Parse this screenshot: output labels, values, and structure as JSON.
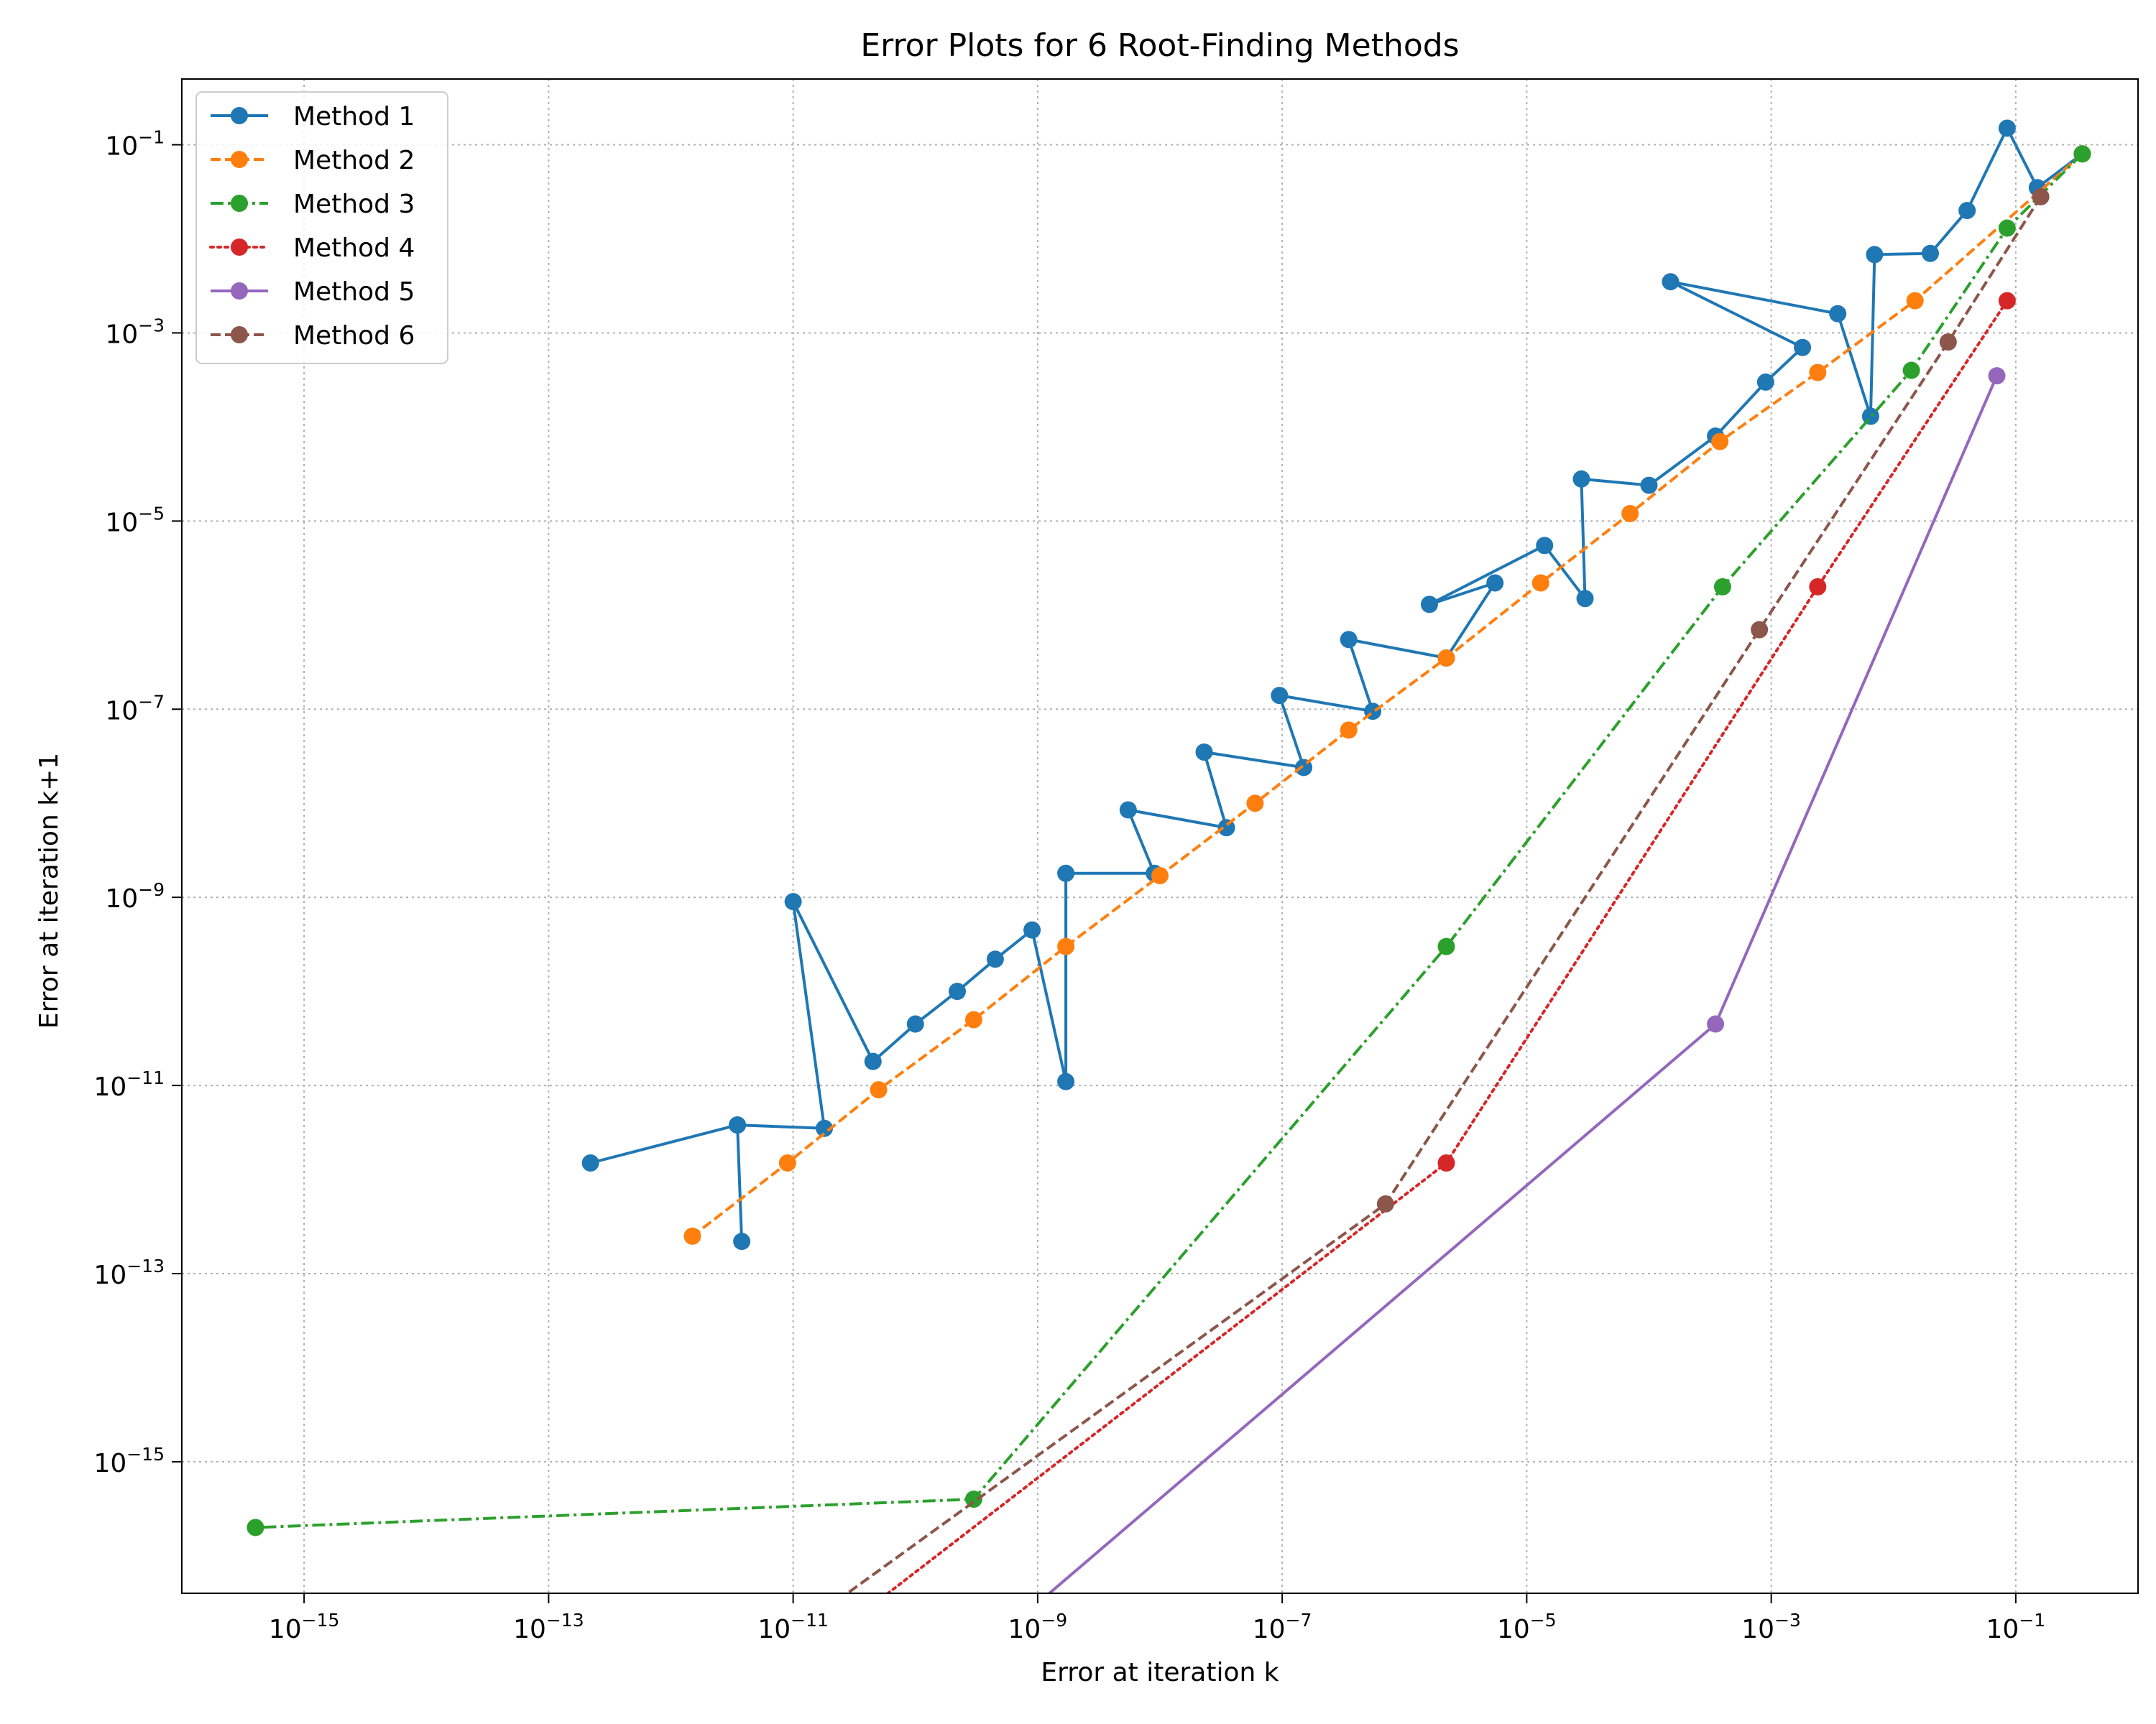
{
  "chart_data": {
    "type": "line",
    "title": "Error Plots for 6 Root-Finding Methods",
    "xlabel": "Error at iteration k",
    "ylabel": "Error at iteration k+1",
    "xscale": "log",
    "yscale": "log",
    "xlim": [
      1e-16,
      1.0
    ],
    "ylim": [
      4e-17,
      0.5
    ],
    "xticks": [
      {
        "value": 1e-15,
        "base": "10",
        "exp": "−15"
      },
      {
        "value": 1e-13,
        "base": "10",
        "exp": "−13"
      },
      {
        "value": 1e-11,
        "base": "10",
        "exp": "−11"
      },
      {
        "value": 1e-09,
        "base": "10",
        "exp": "−9"
      },
      {
        "value": 1e-07,
        "base": "10",
        "exp": "−7"
      },
      {
        "value": 1e-05,
        "base": "10",
        "exp": "−5"
      },
      {
        "value": 0.001,
        "base": "10",
        "exp": "−3"
      },
      {
        "value": 0.1,
        "base": "10",
        "exp": "−1"
      }
    ],
    "yticks": [
      {
        "value": 1e-15,
        "base": "10",
        "exp": "−15"
      },
      {
        "value": 1e-13,
        "base": "10",
        "exp": "−13"
      },
      {
        "value": 1e-11,
        "base": "10",
        "exp": "−11"
      },
      {
        "value": 1e-09,
        "base": "10",
        "exp": "−9"
      },
      {
        "value": 1e-07,
        "base": "10",
        "exp": "−7"
      },
      {
        "value": 1e-05,
        "base": "10",
        "exp": "−5"
      },
      {
        "value": 0.001,
        "base": "10",
        "exp": "−3"
      },
      {
        "value": 0.1,
        "base": "10",
        "exp": "−1"
      }
    ],
    "grid": true,
    "legend_position": "top-left",
    "series": [
      {
        "name": "Method 1",
        "color": "#1f77b4",
        "linestyle": "solid",
        "points": [
          [
            0.35,
            0.08
          ],
          [
            0.15,
            0.035
          ],
          [
            0.085,
            0.15
          ],
          [
            0.04,
            0.02
          ],
          [
            0.02,
            0.007
          ],
          [
            0.007,
            0.0068
          ],
          [
            0.0065,
            0.00013
          ],
          [
            0.0035,
            0.0016
          ],
          [
            0.00015,
            0.0035
          ],
          [
            0.0018,
            0.0007
          ],
          [
            0.0009,
            0.0003
          ],
          [
            0.00035,
            8e-05
          ],
          [
            0.0001,
            2.4e-05
          ],
          [
            2.8e-05,
            2.8e-05
          ],
          [
            3e-05,
            1.5e-06
          ],
          [
            1.4e-05,
            5.5e-06
          ],
          [
            1.6e-06,
            1.3e-06
          ],
          [
            5.5e-06,
            2.2e-06
          ],
          [
            2.2e-06,
            3.5e-07
          ],
          [
            3.5e-07,
            5.5e-07
          ],
          [
            5.5e-07,
            9.5e-08
          ],
          [
            9.5e-08,
            1.4e-07
          ],
          [
            1.5e-07,
            2.4e-08
          ],
          [
            2.3e-08,
            3.5e-08
          ],
          [
            3.5e-08,
            5.5e-09
          ],
          [
            5.5e-09,
            8.5e-09
          ],
          [
            9e-09,
            1.8e-09
          ],
          [
            1.7e-09,
            1.8e-09
          ],
          [
            1.7e-09,
            1.1e-11
          ],
          [
            9e-10,
            4.5e-10
          ],
          [
            4.5e-10,
            2.2e-10
          ],
          [
            2.2e-10,
            1e-10
          ],
          [
            1e-10,
            4.5e-11
          ],
          [
            4.5e-11,
            1.8e-11
          ],
          [
            1e-11,
            9e-10
          ],
          [
            1.8e-11,
            3.5e-12
          ],
          [
            3.5e-12,
            3.8e-12
          ],
          [
            3.8e-12,
            2.2e-13
          ],
          [
            3.5e-12,
            3.8e-12
          ],
          [
            2.2e-13,
            1.5e-12
          ]
        ]
      },
      {
        "name": "Method 2",
        "color": "#ff7f0e",
        "linestyle": "dashed",
        "points": [
          [
            0.35,
            0.08
          ],
          [
            0.015,
            0.0022
          ],
          [
            0.0024,
            0.00038
          ],
          [
            0.00038,
            7e-05
          ],
          [
            7e-05,
            1.2e-05
          ],
          [
            1.3e-05,
            2.2e-06
          ],
          [
            2.2e-06,
            3.5e-07
          ],
          [
            3.5e-07,
            6e-08
          ],
          [
            6e-08,
            1e-08
          ],
          [
            1e-08,
            1.7e-09
          ],
          [
            1.7e-09,
            3e-10
          ],
          [
            3e-10,
            5e-11
          ],
          [
            5e-11,
            9e-12
          ],
          [
            9e-12,
            1.5e-12
          ],
          [
            1.5e-12,
            2.5e-13
          ]
        ]
      },
      {
        "name": "Method 3",
        "color": "#2ca02c",
        "linestyle": "dashdot",
        "points": [
          [
            0.35,
            0.08
          ],
          [
            0.085,
            0.013
          ],
          [
            0.014,
            0.0004
          ],
          [
            0.0004,
            2e-06
          ],
          [
            2.2e-06,
            3e-10
          ],
          [
            3e-10,
            4e-16
          ],
          [
            4e-16,
            2e-16
          ]
        ]
      },
      {
        "name": "Method 4",
        "color": "#d62728",
        "linestyle": "dotted",
        "points": [
          [
            0.085,
            0.0022
          ],
          [
            0.0024,
            2e-06
          ],
          [
            2.2e-06,
            1.5e-12
          ],
          [
            1.5e-12,
            1e-18
          ]
        ]
      },
      {
        "name": "Method 5",
        "color": "#9467bd",
        "linestyle": "solid",
        "points": [
          [
            0.07,
            0.00035
          ],
          [
            0.00035,
            4.5e-11
          ],
          [
            4.5e-11,
            1e-18
          ]
        ]
      },
      {
        "name": "Method 6",
        "color": "#8c564b",
        "linestyle": "dashed",
        "points": [
          [
            0.16,
            0.028
          ],
          [
            0.028,
            0.0008
          ],
          [
            0.0008,
            7e-07
          ],
          [
            7e-07,
            5.5e-13
          ],
          [
            5.5e-13,
            1e-18
          ]
        ]
      }
    ]
  }
}
